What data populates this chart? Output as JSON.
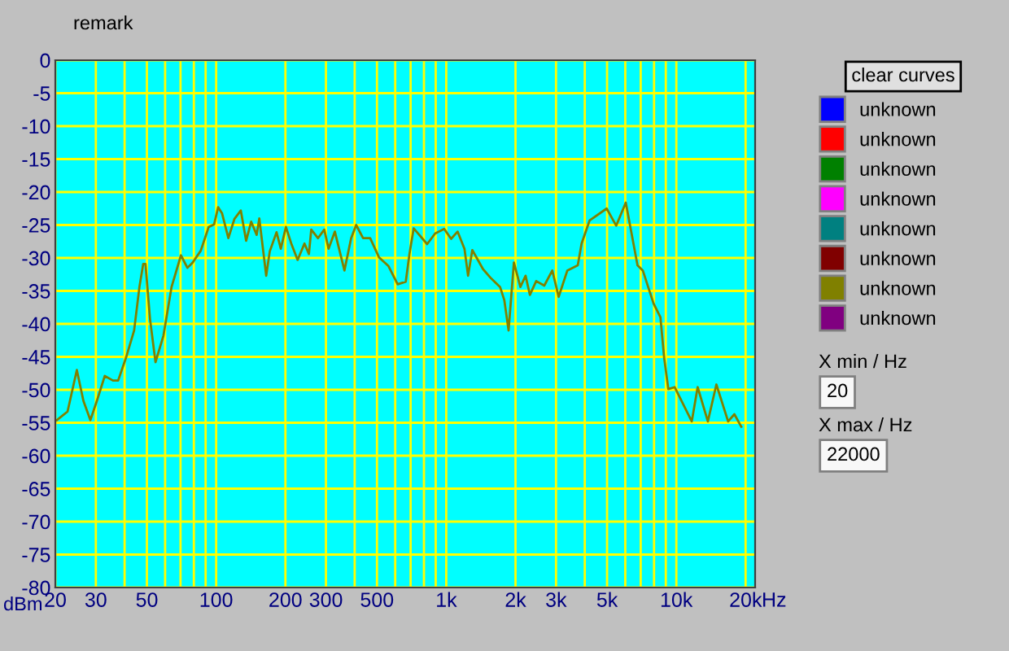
{
  "chart_data": {
    "type": "line",
    "xlabel": "dBm",
    "log": "x",
    "xlim": [
      20,
      22000
    ],
    "xticks": [
      20,
      30,
      {
        "value": 40,
        "label": null
      },
      50,
      {
        "value": 60,
        "label": null
      },
      {
        "value": 70,
        "label": null
      },
      {
        "value": 80,
        "label": null
      },
      {
        "value": 90,
        "label": null
      },
      100,
      200,
      300,
      {
        "value": 400,
        "label": null
      },
      500,
      {
        "value": 600,
        "label": null
      },
      {
        "value": 700,
        "label": null
      },
      {
        "value": 800,
        "label": null
      },
      {
        "value": 900,
        "label": null
      },
      {
        "value": 1000,
        "label": "1k"
      },
      {
        "value": 2000,
        "label": "2k"
      },
      {
        "value": 3000,
        "label": "3k"
      },
      {
        "value": 4000,
        "label": null
      },
      {
        "value": 5000,
        "label": "5k"
      },
      {
        "value": 6000,
        "label": null
      },
      {
        "value": 7000,
        "label": null
      },
      {
        "value": 8000,
        "label": null
      },
      {
        "value": 9000,
        "label": null
      },
      {
        "value": 10000,
        "label": "10k"
      },
      {
        "value": 20000,
        "label": "20k"
      }
    ],
    "ylim": [
      -80,
      0
    ],
    "yticks": [
      -80,
      -75,
      -70,
      -65,
      -60,
      -55,
      -50,
      -45,
      -40,
      -35,
      -30,
      -25,
      -20,
      -15,
      -10,
      -5,
      0
    ],
    "grid": true,
    "legend": "right",
    "series": [
      {
        "name": "unknown",
        "color": "#0000ff"
      },
      {
        "name": "unknown",
        "color": "#ff0000"
      },
      {
        "name": "unknown",
        "color": "#008000"
      },
      {
        "name": "unknown",
        "color": "#ff00ff"
      },
      {
        "name": "unknown",
        "color": "#008080"
      },
      {
        "name": "unknown",
        "color": "#800000"
      },
      {
        "name": "unknown",
        "color": "#808000",
        "x": [
          20.3,
          22.6,
          24.8,
          26.5,
          28.4,
          30.3,
          32.8,
          35.6,
          37.5,
          40.6,
          44,
          46.4,
          48.2,
          49.3,
          51.6,
          54.5,
          59,
          64,
          70.3,
          75,
          79,
          85.7,
          92.8,
          98,
          102,
          106,
          113,
          120,
          128,
          135,
          142,
          150,
          154,
          165,
          171,
          183,
          191,
          201,
          212,
          226,
          242,
          253,
          259,
          277,
          295,
          308,
          328,
          361,
          386,
          406,
          435,
          467,
          510,
          560,
          615,
          667,
          692,
          722,
          826,
          894,
          980,
          1050,
          1120,
          1200,
          1244,
          1298,
          1445,
          1566,
          1714,
          1788,
          1866,
          1968,
          2100,
          2212,
          2310,
          2460,
          2667,
          2890,
          3080,
          3360,
          3730,
          3875,
          4200,
          4980,
          5480,
          6030,
          6780,
          7150,
          7960,
          8530,
          8850,
          9230,
          9840,
          11670,
          12380,
          13710,
          14930,
          16790,
          17880,
          19150
        ],
        "values": [
          -54.6,
          -53.3,
          -47,
          -51.7,
          -54.6,
          -51.7,
          -47.9,
          -48.6,
          -48.6,
          -45.1,
          -41,
          -34.4,
          -30.9,
          -30.9,
          -39.3,
          -45.8,
          -41.8,
          -34.4,
          -29.6,
          -31.5,
          -30.7,
          -28.9,
          -25.3,
          -24.9,
          -22.3,
          -23.2,
          -27,
          -24.1,
          -22.8,
          -27.4,
          -24.5,
          -26.5,
          -24,
          -32.7,
          -29,
          -26.1,
          -28.6,
          -25.3,
          -27.8,
          -30.3,
          -27.8,
          -29.4,
          -25.7,
          -27,
          -25.7,
          -28.6,
          -26,
          -31.9,
          -27,
          -25,
          -27,
          -27,
          -29.9,
          -31.2,
          -34,
          -33.6,
          -29.4,
          -25.5,
          -27.9,
          -26.3,
          -25.6,
          -27.1,
          -26,
          -28.6,
          -32.7,
          -28.8,
          -31.7,
          -33.1,
          -34.4,
          -36.4,
          -41,
          -30.7,
          -34.4,
          -32.7,
          -35.6,
          -33.5,
          -34.2,
          -31.9,
          -35.9,
          -31.9,
          -31.1,
          -27.8,
          -24.3,
          -22.5,
          -25.1,
          -21.6,
          -31.1,
          -31.9,
          -36.9,
          -39,
          -45.1,
          -49.9,
          -49.6,
          -54.8,
          -49.6,
          -54.8,
          -49.2,
          -54.8,
          -53.7,
          -55.6
        ]
      },
      {
        "name": "unknown",
        "color": "#800080"
      }
    ],
    "annotations": [
      "remark",
      "clear curves",
      "X min / Hz",
      "20",
      "X max / Hz",
      "22000",
      "Hz"
    ]
  }
}
